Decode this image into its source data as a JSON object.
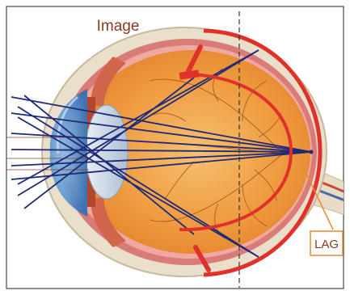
{
  "diagram": {
    "title": "Image",
    "callout": "LAG"
  },
  "colors": {
    "accent_red": "#e0312b",
    "ray_blue": "#1f2a78",
    "lag_orange": "#e58a2f",
    "title_brown": "#8a3a1e"
  },
  "icons": {
    "main": "eye-cross-section-icon"
  }
}
